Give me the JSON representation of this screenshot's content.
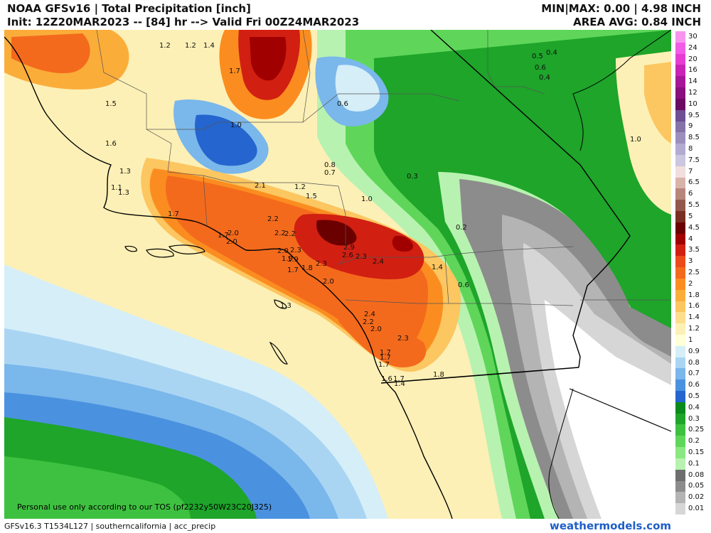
{
  "header": {
    "title": "NOAA GFSv16 | Total Precipitation [inch]",
    "init": "Init: 12Z20MAR2023 -- [84] hr --> Valid Fri 00Z24MAR2023",
    "minmax": "MIN|MAX: 0.00 | 4.98 INCH",
    "area_avg": "AREA AVG: 0.84 INCH"
  },
  "legend": {
    "labels": [
      "30",
      "24",
      "20",
      "16",
      "14",
      "12",
      "10",
      "9.5",
      "9",
      "8.5",
      "8",
      "7.5",
      "7",
      "6.5",
      "6",
      "5.5",
      "5",
      "4.5",
      "4",
      "3.5",
      "3",
      "2.5",
      "2",
      "1.8",
      "1.6",
      "1.4",
      "1.2",
      "1",
      "0.9",
      "0.8",
      "0.7",
      "0.6",
      "0.5",
      "0.4",
      "0.3",
      "0.25",
      "0.2",
      "0.15",
      "0.1",
      "0.08",
      "0.05",
      "0.02",
      "0.01"
    ],
    "colors": [
      "#f794f0",
      "#f25ce6",
      "#e63cd2",
      "#c922b5",
      "#a71699",
      "#8a0f7e",
      "#6b0a63",
      "#6e4f93",
      "#8573a8",
      "#9c8fbd",
      "#b3abd0",
      "#ccc7e0",
      "#f2dede",
      "#d8b3aa",
      "#b8857a",
      "#93574b",
      "#7a2e22",
      "#6b0000",
      "#a00000",
      "#d11f12",
      "#ec4a1a",
      "#f46a1c",
      "#fb8d20",
      "#fbad3a",
      "#fcc660",
      "#fcde8c",
      "#fdf0b6",
      "#ffffd8",
      "#d5eef8",
      "#a9d5f3",
      "#7ab7eb",
      "#4a92df",
      "#2465cf",
      "#0c8a1c",
      "#1ea52a",
      "#3ec140",
      "#5fd65a",
      "#8ae882",
      "#b8f2b0",
      "#6e6e6e",
      "#8c8c8c",
      "#b4b4b4",
      "#d6d6d6"
    ]
  },
  "contour_values": [
    {
      "t": "1.2"
    },
    {
      "t": "1.2"
    },
    {
      "t": "1.4"
    },
    {
      "t": "1.7"
    },
    {
      "t": "1.5"
    },
    {
      "t": "1.0"
    },
    {
      "t": "1.6"
    },
    {
      "t": "1.3"
    },
    {
      "t": "1.1"
    },
    {
      "t": "1.3"
    },
    {
      "t": "1.7"
    },
    {
      "t": "2.1"
    },
    {
      "t": "1.2"
    },
    {
      "t": "1.5"
    },
    {
      "t": "1.0"
    },
    {
      "t": "0.8"
    },
    {
      "t": "0.7"
    },
    {
      "t": "0.6"
    },
    {
      "t": "0.3"
    },
    {
      "t": "0.5"
    },
    {
      "t": "0.4"
    },
    {
      "t": "0.6"
    },
    {
      "t": "0.4"
    },
    {
      "t": "1.0"
    },
    {
      "t": "0.2"
    },
    {
      "t": "2.2"
    },
    {
      "t": "2.2"
    },
    {
      "t": "2.2"
    },
    {
      "t": "2.0"
    },
    {
      "t": "2.0"
    },
    {
      "t": "1.7"
    },
    {
      "t": "2.0"
    },
    {
      "t": "1.9"
    },
    {
      "t": "2.3"
    },
    {
      "t": "1.9"
    },
    {
      "t": "1.7"
    },
    {
      "t": "1.8"
    },
    {
      "t": "2.3"
    },
    {
      "t": "2.9"
    },
    {
      "t": "2.6"
    },
    {
      "t": "2.3"
    },
    {
      "t": "2.4"
    },
    {
      "t": "1.4"
    },
    {
      "t": "0.6"
    },
    {
      "t": "2.0"
    },
    {
      "t": "1.3"
    },
    {
      "t": "2.4"
    },
    {
      "t": "2.2"
    },
    {
      "t": "2.0"
    },
    {
      "t": "2.3"
    },
    {
      "t": "1.7"
    },
    {
      "t": "1.7"
    },
    {
      "t": "1.7"
    },
    {
      "t": "1.8"
    },
    {
      "t": "1.6"
    },
    {
      "t": "1.7"
    },
    {
      "t": "1.4"
    }
  ],
  "tos_notice": "Personal use only according to our TOS (pf2232y50W23C20J325)",
  "footer": {
    "left": "GFSv16.3 T1534L127 | southerncalifornia | acc_precip",
    "right": "weathermodels.com"
  }
}
